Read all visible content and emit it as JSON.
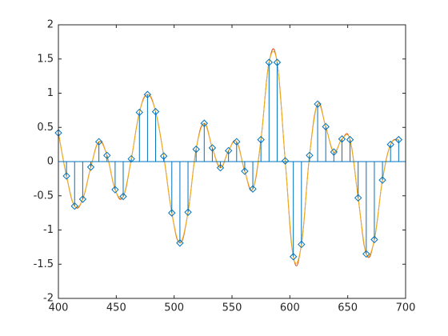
{
  "chart_data": {
    "type": "stem",
    "x": [
      400,
      407,
      414,
      421,
      428,
      435,
      442,
      449,
      456,
      463,
      470,
      477,
      484,
      491,
      498,
      505,
      512,
      519,
      526,
      533,
      540,
      547,
      554,
      561,
      568,
      575,
      582,
      589,
      596,
      603,
      610,
      617,
      624,
      631,
      638,
      645,
      652,
      659,
      666,
      673,
      680,
      687,
      694
    ],
    "series": [
      {
        "type": "stem",
        "color": "#0072bd",
        "values": [
          0.42,
          -0.21,
          -0.65,
          -0.55,
          -0.08,
          0.29,
          0.09,
          -0.41,
          -0.51,
          0.04,
          0.72,
          0.98,
          0.73,
          0.08,
          -0.75,
          -1.19,
          -0.74,
          0.18,
          0.56,
          0.2,
          -0.09,
          0.16,
          0.29,
          -0.14,
          -0.4,
          0.32,
          1.45,
          1.45,
          0.01,
          -1.39,
          -1.21,
          0.09,
          0.84,
          0.51,
          0.14,
          0.33,
          0.32,
          -0.53,
          -1.35,
          -1.14,
          -0.27,
          0.25,
          0.32
        ]
      },
      {
        "type": "line",
        "color": "#d95319",
        "tension": 0.62,
        "values": [
          0.42,
          -0.21,
          -0.65,
          -0.55,
          -0.08,
          0.29,
          0.09,
          -0.41,
          -0.51,
          0.04,
          0.72,
          0.98,
          0.73,
          0.08,
          -0.75,
          -1.19,
          -0.74,
          0.18,
          0.56,
          0.2,
          -0.09,
          0.16,
          0.29,
          -0.14,
          -0.4,
          0.32,
          1.45,
          1.45,
          0.01,
          -1.39,
          -1.21,
          0.09,
          0.84,
          0.51,
          0.14,
          0.33,
          0.32,
          -0.53,
          -1.35,
          -1.14,
          -0.27,
          0.25,
          0.32
        ]
      },
      {
        "type": "line",
        "color": "#edb120",
        "tension": 0.5,
        "values": [
          0.42,
          -0.21,
          -0.65,
          -0.55,
          -0.08,
          0.29,
          0.09,
          -0.41,
          -0.51,
          0.04,
          0.72,
          0.98,
          0.73,
          0.08,
          -0.75,
          -1.19,
          -0.74,
          0.18,
          0.56,
          0.2,
          -0.09,
          0.16,
          0.29,
          -0.14,
          -0.4,
          0.32,
          1.45,
          1.45,
          0.01,
          -1.39,
          -1.21,
          0.09,
          0.84,
          0.51,
          0.14,
          0.33,
          0.32,
          -0.53,
          -1.35,
          -1.14,
          -0.27,
          0.25,
          0.32
        ]
      }
    ],
    "xlim": [
      400,
      700
    ],
    "ylim": [
      -2,
      2
    ],
    "xticks": [
      400,
      450,
      500,
      550,
      600,
      650,
      700
    ],
    "yticks": [
      -2,
      -1.5,
      -1,
      -0.5,
      0,
      0.5,
      1,
      1.5,
      2
    ],
    "grid": false
  }
}
